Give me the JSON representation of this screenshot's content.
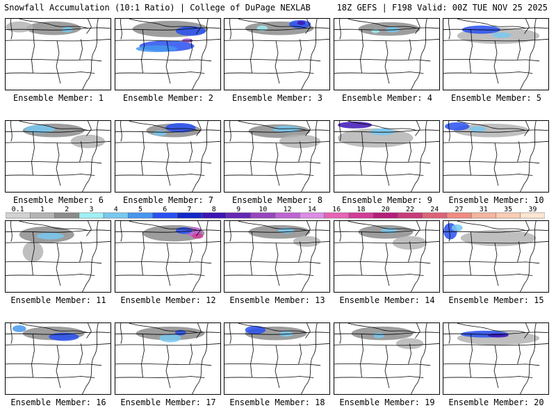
{
  "header": {
    "title": "Snowfall Accumulation (10:1 Ratio) | College of DuPage NEXLAB",
    "run_info": "18Z GEFS | F198 Valid: 00Z TUE NOV 25 2025"
  },
  "legend": {
    "labels": [
      "0.1",
      "1",
      "2",
      "3",
      "4",
      "5",
      "6",
      "7",
      "8",
      "9",
      "10",
      "12",
      "14",
      "16",
      "18",
      "20",
      "22",
      "24",
      "27",
      "31",
      "35",
      "39"
    ],
    "colors": [
      "#d2d2d2",
      "#b4b4b4",
      "#8c8c8c",
      "#a0f0f5",
      "#78c8f0",
      "#4696f0",
      "#2850f0",
      "#1428c8",
      "#3c14b4",
      "#6428b4",
      "#9646be",
      "#be64d2",
      "#dc8ce6",
      "#e664b4",
      "#d23c96",
      "#b41e78",
      "#c83c78",
      "#dc6478",
      "#f08c82",
      "#f5b4a0",
      "#facdb4",
      "#fde6d2"
    ]
  },
  "members": [
    {
      "label": "Ensemble Member: 1"
    },
    {
      "label": "Ensemble Member: 2"
    },
    {
      "label": "Ensemble Member: 3"
    },
    {
      "label": "Ensemble Member: 4"
    },
    {
      "label": "Ensemble Member: 5"
    },
    {
      "label": "Ensemble Member: 6"
    },
    {
      "label": "Ensemble Member: 7"
    },
    {
      "label": "Ensemble Member: 8"
    },
    {
      "label": "Ensemble Member: 9"
    },
    {
      "label": "Ensemble Member: 10"
    },
    {
      "label": "Ensemble Member: 11"
    },
    {
      "label": "Ensemble Member: 12"
    },
    {
      "label": "Ensemble Member: 13"
    },
    {
      "label": "Ensemble Member: 14"
    },
    {
      "label": "Ensemble Member: 15"
    },
    {
      "label": "Ensemble Member: 16"
    },
    {
      "label": "Ensemble Member: 17"
    },
    {
      "label": "Ensemble Member: 18"
    },
    {
      "label": "Ensemble Member: 19"
    },
    {
      "label": "Ensemble Member: 20"
    }
  ]
}
